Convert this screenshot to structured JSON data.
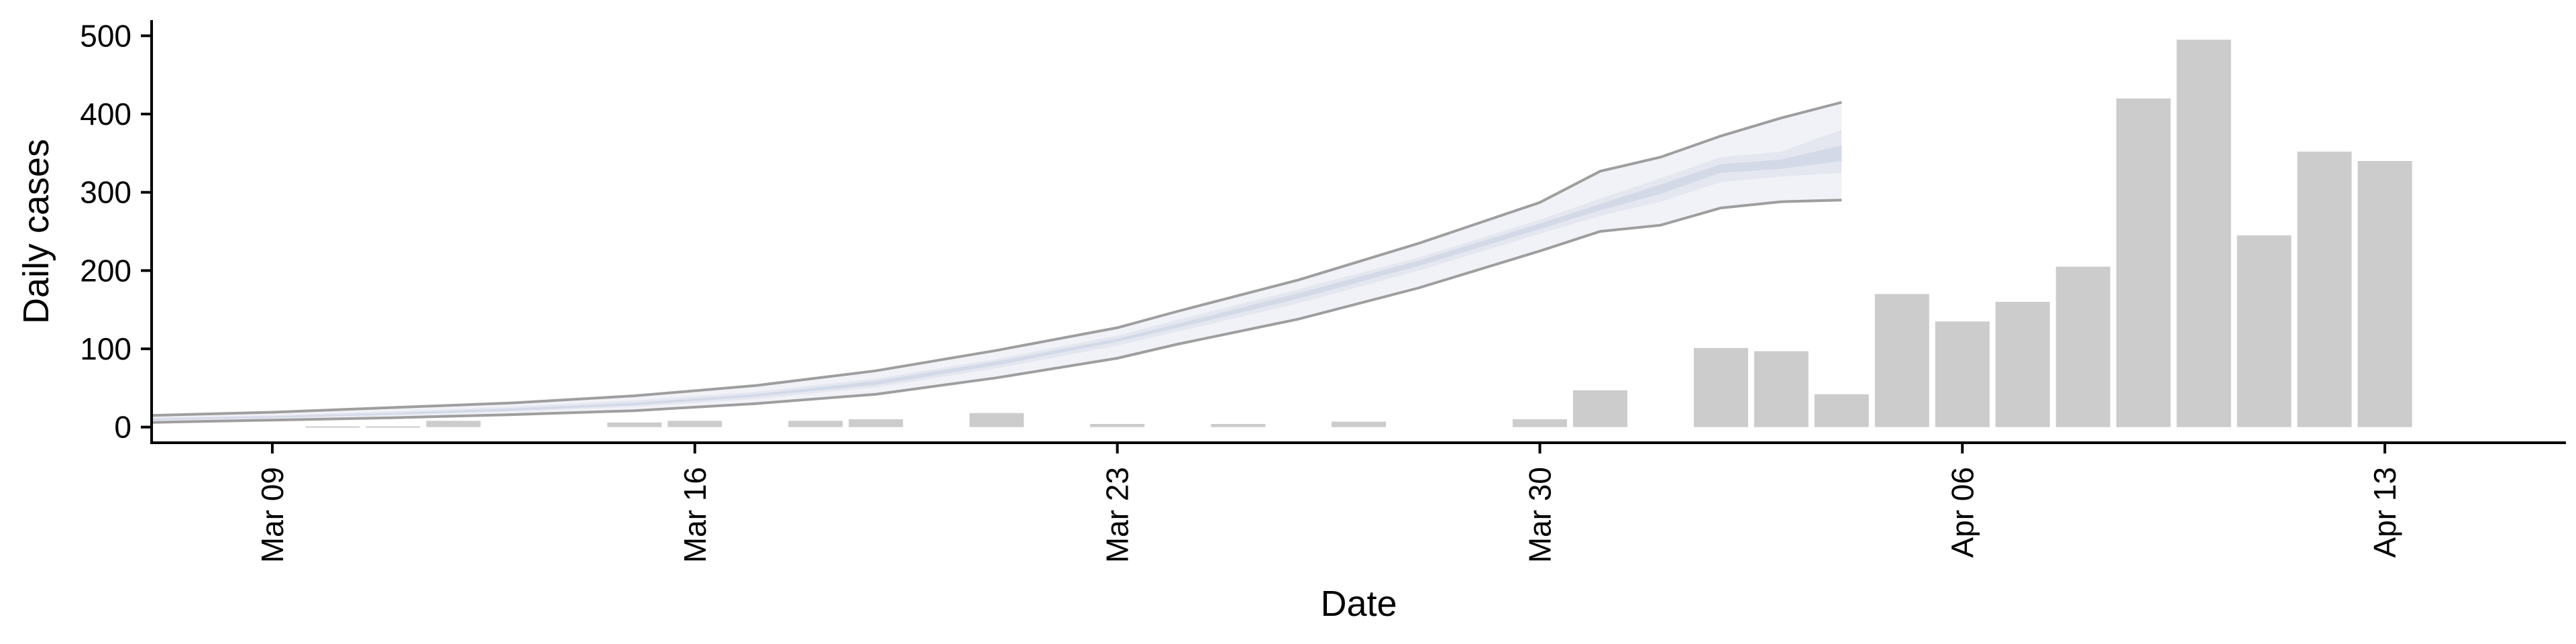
{
  "chart_data": {
    "type": "bar",
    "xlabel": "Date",
    "ylabel": "Daily cases",
    "x_axis": {
      "type": "date",
      "range": [
        "2020-03-07",
        "2020-04-16"
      ],
      "ticks": [
        {
          "date": "2020-03-09",
          "label": "Mar 09"
        },
        {
          "date": "2020-03-16",
          "label": "Mar 16"
        },
        {
          "date": "2020-03-23",
          "label": "Mar 23"
        },
        {
          "date": "2020-03-30",
          "label": "Mar 30"
        },
        {
          "date": "2020-04-06",
          "label": "Apr 06"
        },
        {
          "date": "2020-04-13",
          "label": "Apr 13"
        }
      ]
    },
    "y_axis": {
      "range": [
        -20,
        520
      ],
      "ticks": [
        0,
        100,
        200,
        300,
        400,
        500
      ]
    },
    "grid": false,
    "colors": {
      "bars": "#cccccc",
      "band_outer": "#f1f2f7",
      "band_mid": "#e4e7f0",
      "band_inner": "#d4d9e8",
      "band_edge": "#8e8e8e",
      "axis": "#000000"
    },
    "bars": [
      {
        "date": "2020-03-10",
        "value": 1
      },
      {
        "date": "2020-03-11",
        "value": 1
      },
      {
        "date": "2020-03-12",
        "value": 8
      },
      {
        "date": "2020-03-15",
        "value": 6
      },
      {
        "date": "2020-03-16",
        "value": 8
      },
      {
        "date": "2020-03-18",
        "value": 8
      },
      {
        "date": "2020-03-19",
        "value": 10
      },
      {
        "date": "2020-03-21",
        "value": 18
      },
      {
        "date": "2020-03-23",
        "value": 4
      },
      {
        "date": "2020-03-25",
        "value": 4
      },
      {
        "date": "2020-03-27",
        "value": 7
      },
      {
        "date": "2020-03-30",
        "value": 10
      },
      {
        "date": "2020-03-31",
        "value": 47
      },
      {
        "date": "2020-04-02",
        "value": 101
      },
      {
        "date": "2020-04-03",
        "value": 97
      },
      {
        "date": "2020-04-04",
        "value": 42
      },
      {
        "date": "2020-04-05",
        "value": 170
      },
      {
        "date": "2020-04-06",
        "value": 135
      },
      {
        "date": "2020-04-07",
        "value": 160
      },
      {
        "date": "2020-04-08",
        "value": 205
      },
      {
        "date": "2020-04-09",
        "value": 420
      },
      {
        "date": "2020-04-10",
        "value": 495
      },
      {
        "date": "2020-04-11",
        "value": 245
      },
      {
        "date": "2020-04-12",
        "value": 352
      },
      {
        "date": "2020-04-13",
        "value": 340
      }
    ],
    "forecast_band": {
      "dates": [
        "2020-03-07",
        "2020-03-09",
        "2020-03-11",
        "2020-03-13",
        "2020-03-15",
        "2020-03-17",
        "2020-03-19",
        "2020-03-21",
        "2020-03-23",
        "2020-03-24",
        "2020-03-26",
        "2020-03-28",
        "2020-03-30",
        "2020-03-31",
        "2020-04-01",
        "2020-04-02",
        "2020-04-03",
        "2020-04-04"
      ],
      "outer_lower": [
        6,
        9,
        12,
        16,
        21,
        30,
        42,
        63,
        88,
        106,
        138,
        178,
        225,
        250,
        258,
        280,
        288,
        290
      ],
      "outer_upper": [
        15,
        19,
        25,
        31,
        40,
        53,
        72,
        98,
        127,
        148,
        188,
        235,
        287,
        327,
        345,
        372,
        395,
        415
      ],
      "mid_lower": [
        8,
        11,
        15,
        20,
        26,
        36,
        51,
        75,
        104,
        122,
        158,
        200,
        247,
        270,
        288,
        313,
        320,
        325
      ],
      "mid_upper": [
        12,
        15,
        20,
        26,
        34,
        45,
        62,
        87,
        117,
        137,
        176,
        217,
        265,
        292,
        318,
        345,
        352,
        380
      ],
      "inner_lower": [
        9,
        12,
        16,
        21,
        28,
        39,
        54,
        79,
        109,
        127,
        164,
        206,
        253,
        277,
        298,
        325,
        330,
        340
      ],
      "inner_upper": [
        11,
        14,
        18,
        24,
        31,
        42,
        59,
        84,
        113,
        132,
        171,
        213,
        260,
        285,
        310,
        336,
        342,
        360
      ]
    }
  }
}
